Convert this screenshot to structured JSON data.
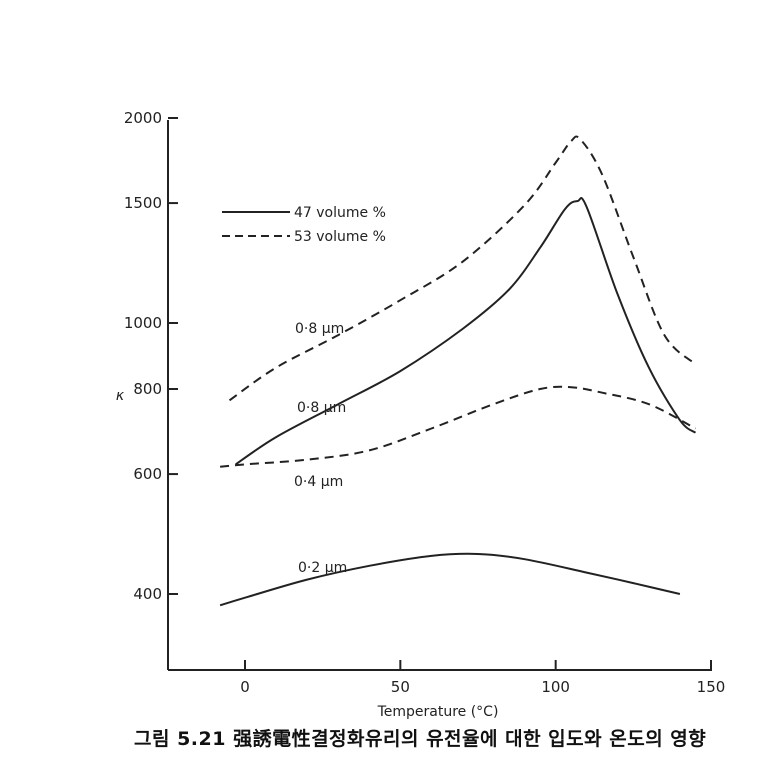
{
  "chart_data": {
    "type": "line",
    "xlabel": "Temperature (°C)",
    "ylabel": "κ",
    "xlim": [
      -10,
      150
    ],
    "ylim": [
      300,
      2000
    ],
    "y_scale": "log",
    "x_ticks": [
      0,
      50,
      100,
      150
    ],
    "y_ticks": [
      400,
      600,
      800,
      1000,
      1500,
      2000
    ],
    "grid": false,
    "legend": {
      "position": "top-left",
      "entries": [
        {
          "label": "47 volume %",
          "style": "solid"
        },
        {
          "label": "53 volume %",
          "style": "dashed"
        }
      ]
    },
    "series": [
      {
        "label": "0·8 μm",
        "style": "dashed",
        "x": [
          -5,
          10,
          30,
          50,
          70,
          90,
          100,
          105,
          108,
          115,
          125,
          135,
          145
        ],
        "y": [
          770,
          860,
          960,
          1080,
          1230,
          1490,
          1720,
          1850,
          1860,
          1650,
          1250,
          960,
          870
        ]
      },
      {
        "label": "0·8 μm",
        "style": "solid",
        "x": [
          -3,
          10,
          30,
          50,
          70,
          85,
          95,
          103,
          107,
          110,
          120,
          130,
          140,
          145
        ],
        "y": [
          620,
          680,
          760,
          850,
          980,
          1120,
          1290,
          1470,
          1510,
          1480,
          1100,
          860,
          720,
          690
        ]
      },
      {
        "label": "0·4 μm",
        "style": "dashed",
        "x": [
          -8,
          0,
          20,
          40,
          60,
          80,
          95,
          105,
          115,
          130,
          145
        ],
        "y": [
          615,
          620,
          630,
          650,
          700,
          760,
          800,
          805,
          790,
          760,
          700
        ]
      },
      {
        "label": "0·2 μm",
        "style": "solid",
        "x": [
          -8,
          0,
          20,
          40,
          60,
          75,
          90,
          110,
          125,
          140
        ],
        "y": [
          385,
          395,
          420,
          440,
          455,
          458,
          450,
          430,
          415,
          400
        ]
      }
    ]
  },
  "caption": "그림 5.21  强誘電性결정화유리의 유전율에 대한 입도와 온도의 영향"
}
